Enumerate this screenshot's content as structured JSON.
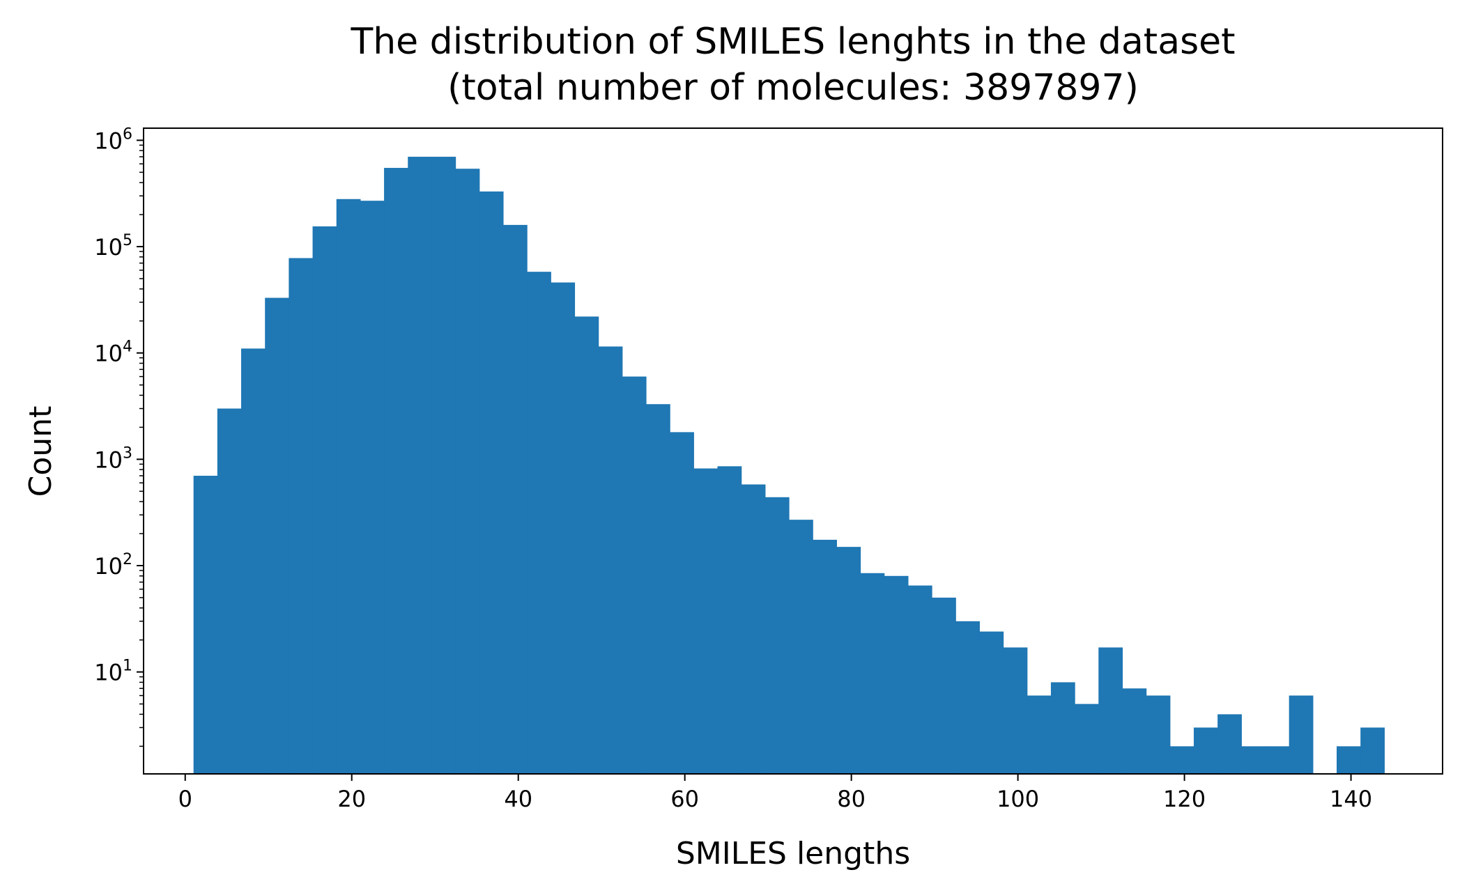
{
  "chart_data": {
    "type": "bar",
    "title_lines": [
      "The distribution of SMILES lenghts in the dataset",
      "(total number of molecules: 3897897)"
    ],
    "xlabel": "SMILES lengths",
    "ylabel": "Count",
    "y_scale": "log",
    "xlim": [
      -5,
      151
    ],
    "ylim": [
      1.1,
      1300000
    ],
    "x_ticks": [
      0,
      20,
      40,
      60,
      80,
      100,
      120,
      140
    ],
    "x_tick_labels": [
      "0",
      "20",
      "40",
      "60",
      "80",
      "100",
      "120",
      "140"
    ],
    "y_ticks": [
      10,
      100,
      1000,
      10000,
      100000,
      1000000
    ],
    "y_tick_labels": [
      {
        "base": "10",
        "exp": "1"
      },
      {
        "base": "10",
        "exp": "2"
      },
      {
        "base": "10",
        "exp": "3"
      },
      {
        "base": "10",
        "exp": "4"
      },
      {
        "base": "10",
        "exp": "5"
      },
      {
        "base": "10",
        "exp": "6"
      }
    ],
    "bin_edges": [
      1.0,
      3.86,
      6.72,
      9.58,
      12.44,
      15.3,
      18.16,
      21.02,
      23.88,
      26.74,
      29.6,
      32.46,
      35.32,
      38.18,
      41.04,
      43.9,
      46.76,
      49.62,
      52.48,
      55.34,
      58.2,
      61.06,
      63.92,
      66.78,
      69.64,
      72.5,
      75.36,
      78.22,
      81.08,
      83.94,
      86.8,
      89.66,
      92.52,
      95.38,
      98.24,
      101.1,
      103.96,
      106.82,
      109.68,
      112.54,
      115.4,
      118.26,
      121.12,
      123.98,
      126.84,
      129.7,
      132.56,
      135.42,
      138.28,
      141.14,
      144.0
    ],
    "counts": [
      700,
      3000,
      11000,
      33000,
      78000,
      155000,
      280000,
      270000,
      550000,
      700000,
      700000,
      540000,
      330000,
      160000,
      58000,
      46000,
      22000,
      11500,
      6000,
      3300,
      1800,
      820,
      860,
      580,
      440,
      270,
      175,
      150,
      85,
      80,
      65,
      50,
      30,
      24,
      17,
      6,
      8,
      5,
      17,
      7,
      6,
      2,
      3,
      4,
      2,
      2,
      6,
      0,
      2,
      3
    ],
    "bar_color": "#1f77b4"
  }
}
